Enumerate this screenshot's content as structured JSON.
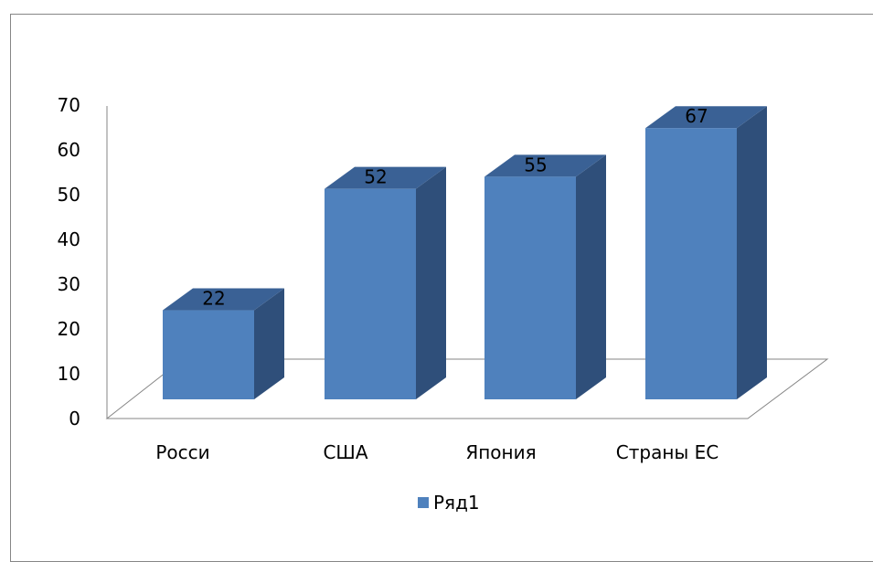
{
  "chart_data": {
    "type": "bar",
    "categories": [
      "Росси",
      "США",
      "Япония",
      "Страны ЕС"
    ],
    "series": [
      {
        "name": "Ряд1",
        "values": [
          22,
          52,
          55,
          67
        ],
        "color": "#4F81BD"
      }
    ],
    "y_ticks": [
      "0",
      "10",
      "20",
      "30",
      "40",
      "50",
      "60",
      "70"
    ],
    "ylim": [
      0,
      70
    ],
    "grid": false,
    "legend_position": "bottom",
    "three_d": true,
    "colors": {
      "front": "#4F81BD",
      "side": "#2F4F7A",
      "top": "#3A6195",
      "axis": "#868686"
    }
  }
}
